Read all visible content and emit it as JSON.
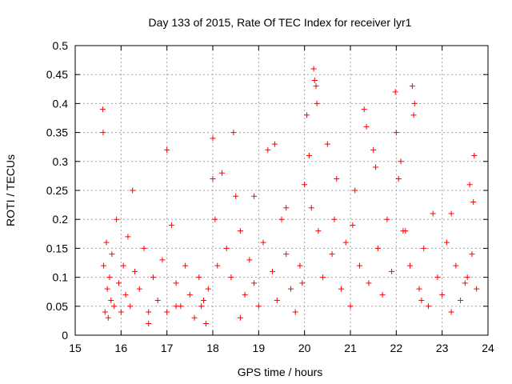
{
  "chart_data": {
    "type": "scatter",
    "title": "Day 133 of 2015, Rate Of TEC Index for receiver lyr1",
    "xlabel": "GPS time / hours",
    "ylabel": "ROTI / TECUs",
    "xlim": [
      15,
      24
    ],
    "ylim": [
      0,
      0.5
    ],
    "xticks": [
      15,
      16,
      17,
      18,
      19,
      20,
      21,
      22,
      23,
      24
    ],
    "xtick_labels": [
      "15",
      "16",
      "17",
      "18",
      "19",
      "20",
      "21",
      "22",
      "23",
      "24"
    ],
    "yticks": [
      0,
      0.05,
      0.1,
      0.15,
      0.2,
      0.25,
      0.3,
      0.35,
      0.4,
      0.45,
      0.5
    ],
    "ytick_labels": [
      "0",
      "0.05",
      "0.1",
      "0.15",
      "0.2",
      "0.25",
      "0.3",
      "0.35",
      "0.4",
      "0.45",
      "0.5"
    ],
    "grid": true,
    "marker": "+",
    "marker_color": "#ff0000",
    "series": [
      {
        "name": "ROTI",
        "x": [
          15.6,
          15.62,
          15.65,
          15.68,
          15.7,
          15.72,
          15.75,
          15.78,
          15.8,
          15.85,
          15.9,
          15.95,
          16.0,
          16.05,
          16.1,
          16.15,
          16.2,
          16.3,
          16.4,
          16.5,
          16.6,
          16.7,
          16.8,
          16.9,
          17.0,
          17.1,
          17.2,
          17.3,
          17.4,
          17.5,
          17.6,
          17.7,
          17.8,
          17.85,
          17.9,
          18.0,
          18.05,
          18.1,
          18.2,
          18.3,
          18.4,
          18.5,
          18.6,
          18.7,
          18.8,
          18.9,
          19.0,
          19.1,
          19.2,
          19.3,
          19.4,
          19.5,
          19.6,
          19.7,
          19.8,
          19.9,
          20.0,
          20.05,
          20.1,
          20.15,
          20.2,
          20.25,
          20.3,
          20.4,
          20.5,
          20.6,
          20.7,
          20.8,
          20.9,
          21.0,
          21.1,
          21.2,
          21.3,
          21.4,
          21.5,
          21.6,
          21.7,
          21.8,
          21.9,
          22.0,
          22.05,
          22.1,
          22.2,
          22.3,
          22.35,
          22.4,
          22.5,
          22.6,
          22.7,
          22.8,
          22.9,
          23.0,
          23.1,
          23.2,
          23.3,
          23.4,
          23.5,
          23.6,
          23.65,
          23.7,
          23.75,
          15.61,
          16.25,
          17.0,
          18.45,
          19.35,
          20.22,
          20.27,
          21.35,
          21.98,
          22.38,
          23.68,
          17.2,
          18.0,
          18.6,
          19.6,
          20.65,
          21.55,
          22.15,
          23.55,
          16.6,
          17.75,
          18.9,
          19.95,
          21.05,
          22.55,
          23.2
        ],
        "y": [
          0.39,
          0.12,
          0.04,
          0.16,
          0.08,
          0.03,
          0.1,
          0.06,
          0.14,
          0.05,
          0.2,
          0.09,
          0.04,
          0.12,
          0.07,
          0.17,
          0.05,
          0.11,
          0.08,
          0.15,
          0.04,
          0.1,
          0.06,
          0.13,
          0.04,
          0.19,
          0.09,
          0.05,
          0.12,
          0.07,
          0.03,
          0.1,
          0.06,
          0.02,
          0.08,
          0.34,
          0.2,
          0.12,
          0.28,
          0.15,
          0.1,
          0.24,
          0.18,
          0.07,
          0.13,
          0.09,
          0.05,
          0.16,
          0.32,
          0.11,
          0.06,
          0.2,
          0.14,
          0.08,
          0.04,
          0.12,
          0.26,
          0.38,
          0.31,
          0.22,
          0.46,
          0.43,
          0.18,
          0.1,
          0.33,
          0.14,
          0.27,
          0.08,
          0.16,
          0.05,
          0.25,
          0.12,
          0.39,
          0.09,
          0.32,
          0.15,
          0.07,
          0.2,
          0.11,
          0.35,
          0.27,
          0.3,
          0.18,
          0.12,
          0.43,
          0.4,
          0.08,
          0.15,
          0.05,
          0.21,
          0.1,
          0.07,
          0.16,
          0.04,
          0.12,
          0.06,
          0.09,
          0.26,
          0.14,
          0.31,
          0.08,
          0.35,
          0.25,
          0.32,
          0.35,
          0.33,
          0.44,
          0.4,
          0.36,
          0.42,
          0.38,
          0.23,
          0.05,
          0.27,
          0.03,
          0.22,
          0.2,
          0.29,
          0.18,
          0.1,
          0.02,
          0.05,
          0.24,
          0.09,
          0.19,
          0.06,
          0.21
        ]
      }
    ]
  }
}
